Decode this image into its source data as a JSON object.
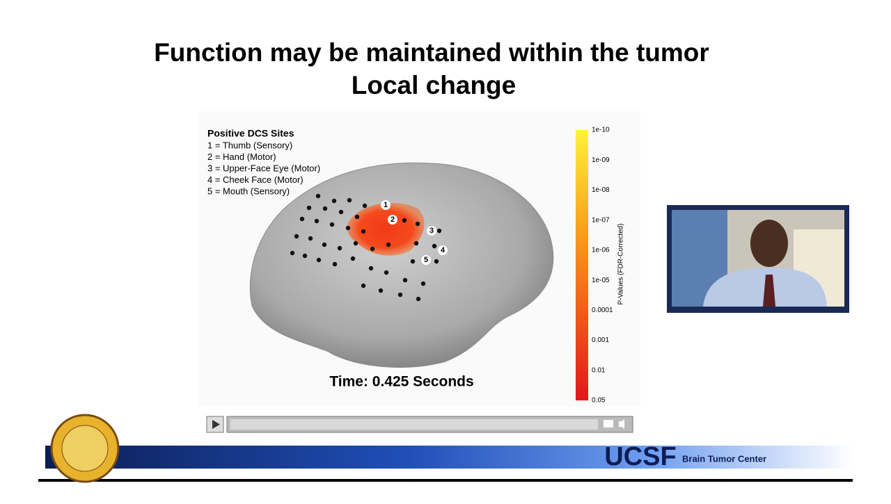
{
  "slide": {
    "title_lines": [
      "Function may be maintained within the tumor",
      "Local change"
    ],
    "figure": {
      "legend_title": "Positive DCS Sites",
      "legend_items": [
        "1 = Thumb (Sensory)",
        "2 = Hand (Motor)",
        "3 = Upper-Face Eye (Motor)",
        "4 = Cheek Face (Motor)",
        "5 = Mouth (Sensory)"
      ],
      "site_labels": [
        "1",
        "2",
        "3",
        "4",
        "5"
      ],
      "colorbar_label": "P-Values (FDR-Corrected)",
      "colorbar_ticks": [
        "1e-10",
        "1e-09",
        "1e-08",
        "1e-07",
        "1e-06",
        "1e-05",
        "0.0001",
        "0.001",
        "0.01",
        "0.05"
      ],
      "time_label": "Time: 0.425 Seconds"
    },
    "footer": {
      "logo": "UCSF",
      "center_name": "Brain Tumor Center"
    }
  }
}
